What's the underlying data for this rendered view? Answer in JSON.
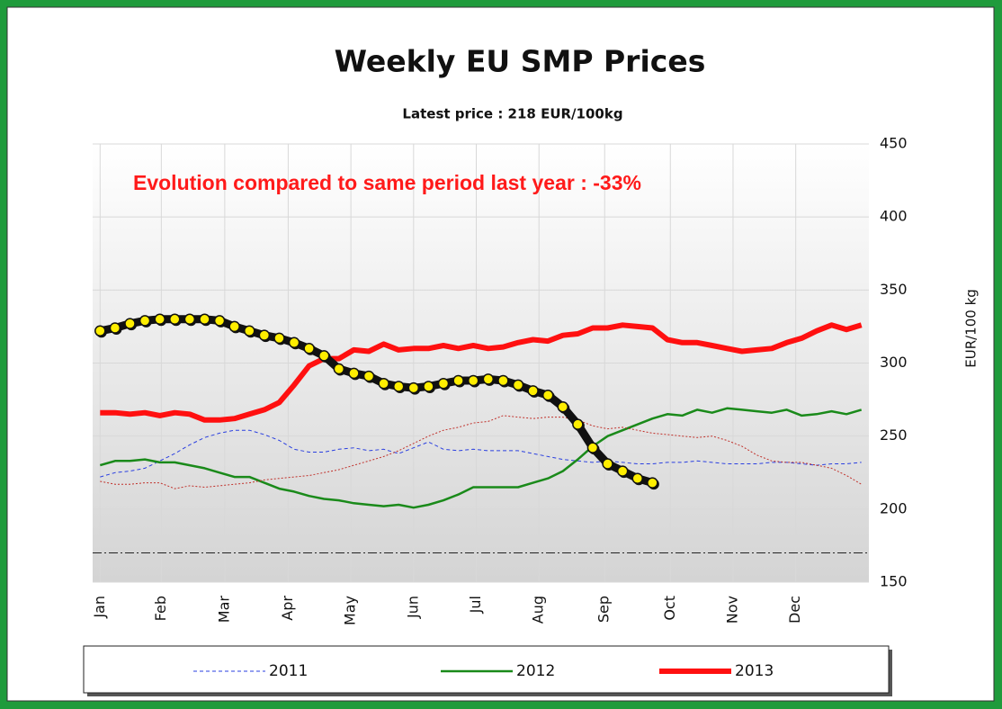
{
  "chart_data": {
    "type": "line",
    "title": "Weekly EU SMP Prices",
    "subtitle": "Latest price : 218  EUR/100kg",
    "annotation": "Evolution compared to same period last year : -33%",
    "y_label": "EUR/100  kg",
    "ylim": [
      150,
      450
    ],
    "yticks": [
      150,
      200,
      250,
      300,
      350,
      400,
      450
    ],
    "xlim": [
      0.5,
      52.5
    ],
    "xticks": [
      {
        "value": 1,
        "label": "Jan"
      },
      {
        "value": 5.1,
        "label": "Feb"
      },
      {
        "value": 9.35,
        "label": "Mar"
      },
      {
        "value": 13.6,
        "label": "Apr"
      },
      {
        "value": 17.8,
        "label": "May"
      },
      {
        "value": 22,
        "label": "Jun"
      },
      {
        "value": 26.2,
        "label": "Jul"
      },
      {
        "value": 30.4,
        "label": "Aug"
      },
      {
        "value": 34.8,
        "label": "Sep"
      },
      {
        "value": 39.2,
        "label": "Oct"
      },
      {
        "value": 43.4,
        "label": "Nov"
      },
      {
        "value": 47.6,
        "label": "Dec"
      }
    ],
    "grid": true,
    "reference_line": 170,
    "series": [
      {
        "name": "2011",
        "color": "#2a3fe0",
        "line_style": "dashed",
        "line_width": 1,
        "x": [
          1,
          2,
          3,
          4,
          5,
          6,
          7,
          8,
          9,
          10,
          11,
          12,
          13,
          14,
          15,
          16,
          17,
          18,
          19,
          20,
          21,
          22,
          23,
          24,
          25,
          26,
          27,
          28,
          29,
          30,
          31,
          32,
          33,
          34,
          35,
          36,
          37,
          38,
          39,
          40,
          41,
          42,
          43,
          44,
          45,
          46,
          47,
          48,
          49,
          50,
          51,
          52
        ],
        "values": [
          222,
          225,
          226,
          228,
          233,
          238,
          244,
          249,
          252,
          254,
          254,
          251,
          247,
          241,
          239,
          239,
          241,
          242,
          240,
          241,
          238,
          242,
          246,
          241,
          240,
          241,
          240,
          240,
          240,
          238,
          236,
          234,
          233,
          232,
          233,
          232,
          231,
          231,
          232,
          232,
          233,
          232,
          231,
          231,
          231,
          232,
          232,
          231,
          230,
          231,
          231,
          232
        ]
      },
      {
        "name": "2012",
        "color": "#1a8a1a",
        "line_style": "solid",
        "line_width": 2.5,
        "x": [
          1,
          2,
          3,
          4,
          5,
          6,
          7,
          8,
          9,
          10,
          11,
          12,
          13,
          14,
          15,
          16,
          17,
          18,
          19,
          20,
          21,
          22,
          23,
          24,
          25,
          26,
          27,
          28,
          29,
          30,
          31,
          32,
          33,
          34,
          35,
          36,
          37,
          38,
          39,
          40,
          41,
          42,
          43,
          44,
          45,
          46,
          47,
          48,
          49,
          50,
          51,
          52
        ],
        "values": [
          230,
          233,
          233,
          234,
          232,
          232,
          230,
          228,
          225,
          222,
          222,
          218,
          214,
          212,
          209,
          207,
          206,
          204,
          203,
          202,
          203,
          201,
          203,
          206,
          210,
          215,
          215,
          215,
          215,
          218,
          221,
          226,
          234,
          243,
          250,
          254,
          258,
          262,
          265,
          264,
          268,
          266,
          269,
          268,
          267,
          266,
          268,
          264,
          265,
          267,
          265,
          268
        ]
      },
      {
        "name": "2013",
        "color": "#ff1010",
        "line_style": "solid",
        "line_width": 6,
        "x": [
          1,
          2,
          3,
          4,
          5,
          6,
          7,
          8,
          9,
          10,
          11,
          12,
          13,
          14,
          15,
          16,
          17,
          18,
          19,
          20,
          21,
          22,
          23,
          24,
          25,
          26,
          27,
          28,
          29,
          30,
          31,
          32,
          33,
          34,
          35,
          36,
          37,
          38,
          39,
          40,
          41,
          42,
          43,
          44,
          45,
          46,
          47,
          48,
          49,
          50,
          51,
          52
        ],
        "values": [
          266,
          266,
          265,
          266,
          264,
          266,
          265,
          261,
          261,
          262,
          265,
          268,
          273,
          285,
          298,
          303,
          303,
          309,
          308,
          313,
          309,
          310,
          310,
          312,
          310,
          312,
          310,
          311,
          314,
          316,
          315,
          319,
          320,
          324,
          324,
          326,
          325,
          324,
          316,
          314,
          314,
          312,
          310,
          308,
          309,
          310,
          314,
          317,
          322,
          326,
          323,
          326
        ]
      },
      {
        "color": "#c0302a",
        "line_style": "dotted",
        "line_width": 1,
        "x": [
          1,
          2,
          3,
          4,
          5,
          6,
          7,
          8,
          9,
          10,
          11,
          12,
          13,
          14,
          15,
          16,
          17,
          18,
          19,
          20,
          21,
          22,
          23,
          24,
          25,
          26,
          27,
          28,
          29,
          30,
          31,
          32,
          33,
          34,
          35,
          36,
          37,
          38,
          39,
          40,
          41,
          42,
          43,
          44,
          45,
          46,
          47,
          48,
          49,
          50,
          51,
          52
        ],
        "values": [
          219,
          217,
          217,
          218,
          218,
          214,
          216,
          215,
          216,
          217,
          218,
          220,
          221,
          222,
          223,
          225,
          227,
          230,
          233,
          236,
          240,
          245,
          250,
          254,
          256,
          259,
          260,
          264,
          263,
          262,
          263,
          263,
          261,
          257,
          255,
          256,
          254,
          252,
          251,
          250,
          249,
          250,
          247,
          243,
          237,
          233,
          232,
          232,
          230,
          228,
          223,
          217
        ]
      },
      {
        "color": "#111111",
        "marker": "circle",
        "marker_color": "#ffee00",
        "line_style": "solid",
        "line_width": 9,
        "x": [
          1,
          2,
          3,
          4,
          5,
          6,
          7,
          8,
          9,
          10,
          11,
          12,
          13,
          14,
          15,
          16,
          17,
          18,
          19,
          20,
          21,
          22,
          23,
          24,
          25,
          26,
          27,
          28,
          29,
          30,
          31,
          32,
          33,
          34,
          35,
          36,
          37,
          38
        ],
        "values": [
          322,
          324,
          327,
          329,
          330,
          330,
          330,
          330,
          329,
          325,
          322,
          319,
          317,
          314,
          310,
          305,
          296,
          293,
          291,
          286,
          284,
          283,
          284,
          286,
          288,
          288,
          289,
          288,
          285,
          281,
          278,
          270,
          258,
          242,
          231,
          226,
          221,
          218
        ]
      }
    ]
  }
}
